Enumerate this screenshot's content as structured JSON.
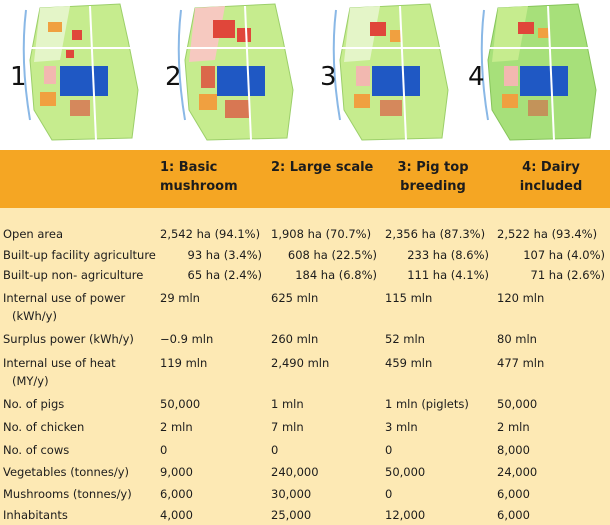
{
  "maps": [
    {
      "number": "1"
    },
    {
      "number": "2"
    },
    {
      "number": "3"
    },
    {
      "number": "4"
    }
  ],
  "colors": {
    "header": "#f5a623",
    "body": "#fde9b4",
    "field_green": "#c6ec8e",
    "field_light": "#e4f5c8",
    "water_blue": "#1f58c4",
    "built_red": "#e0463a",
    "built_orange": "#f0a040"
  },
  "table": {
    "columns": [
      {
        "line1": "1: Basic",
        "line2": "mushroom"
      },
      {
        "line1": "2: Large scale",
        "line2": ""
      },
      {
        "line1": "3: Pig top",
        "line2": "breeding"
      },
      {
        "line1": "4: Dairy",
        "line2": "included"
      }
    ],
    "rows": [
      {
        "label": "Open area",
        "label2": "",
        "values": [
          "2,542 ha (94.1%)",
          "1,908 ha (70.7%)",
          "2,356 ha (87.3%)",
          "2,522 ha (93.4%)"
        ]
      },
      {
        "label": "Built-up facility agriculture",
        "label2": "",
        "values": [
          "93 ha (3.4%)",
          "608 ha (22.5%)",
          "233 ha (8.6%)",
          "107 ha (4.0%)"
        ]
      },
      {
        "label": "Built-up non- agriculture",
        "label2": "",
        "values": [
          "65 ha (2.4%)",
          "184 ha (6.8%)",
          "111 ha (4.1%)",
          "71 ha (2.6%)"
        ]
      },
      {
        "label": "Internal use of power",
        "label2": "(kWh/y)",
        "values": [
          "29 mln",
          "625 mln",
          "115 mln",
          "120 mln"
        ]
      },
      {
        "label": "Surplus power (kWh/y)",
        "label2": "",
        "values": [
          "−0.9 mln",
          "260 mln",
          "52 mln",
          "80 mln"
        ]
      },
      {
        "label": "Internal use of heat",
        "label2": "(MY/y)",
        "values": [
          "119 mln",
          "2,490 mln",
          "459 mln",
          "477 mln"
        ]
      },
      {
        "label": "No. of pigs",
        "label2": "",
        "values": [
          "50,000",
          "1 mln",
          "1 mln (piglets)",
          "50,000"
        ]
      },
      {
        "label": "No. of chicken",
        "label2": "",
        "values": [
          "2 mln",
          "7 mln",
          "3 mln",
          "2 mln"
        ]
      },
      {
        "label": "No. of cows",
        "label2": "",
        "values": [
          "0",
          "0",
          "0",
          "8,000"
        ]
      },
      {
        "label": "Vegetables (tonnes/y)",
        "label2": "",
        "values": [
          "9,000",
          "240,000",
          "50,000",
          "24,000"
        ]
      },
      {
        "label": "Mushrooms (tonnes/y)",
        "label2": "",
        "values": [
          "6,000",
          "30,000",
          "0",
          "6,000"
        ]
      },
      {
        "label": "Inhabitants",
        "label2": "",
        "values": [
          "4,000",
          "25,000",
          "12,000",
          "6,000"
        ]
      }
    ]
  }
}
